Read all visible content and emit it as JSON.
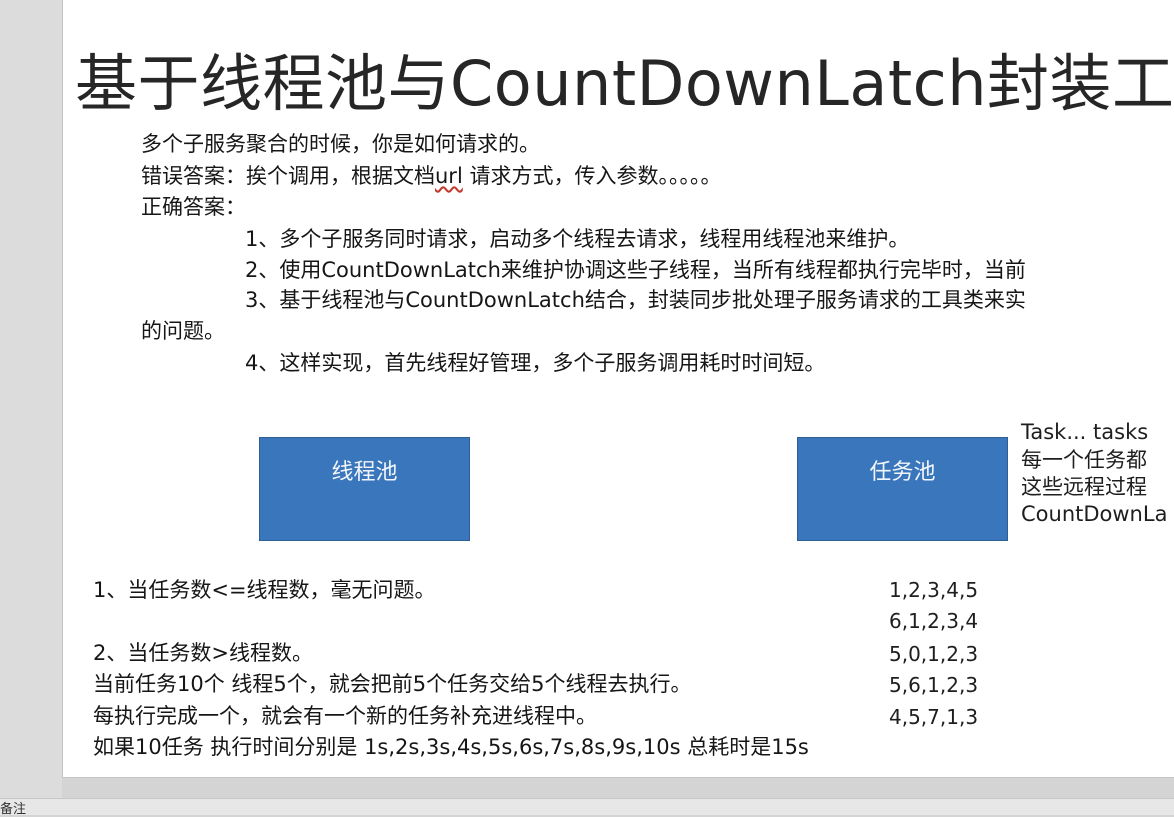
{
  "slide": {
    "title": "基于线程池与CountDownLatch封装工具类",
    "body_lines": [
      "多个子服务聚合的时候，你是如何请求的。",
      "错误答案：挨个调用，根据文档",
      "url",
      " 请求方式，传入参数。。。。。",
      "正确答案：",
      "1、多个子服务同时请求，启动多个线程去请求，线程用线程池来维护。",
      "2、使用CountDownLatch来维护协调这些子线程，当所有线程都执行完毕时，当前",
      "3、基于线程池与CountDownLatch结合，封装同步批处理子服务请求的工具类来实",
      "的问题。",
      "4、这样实现，首先线程好管理，多个子服务调用耗时时间短。"
    ],
    "boxes": {
      "thread_pool": "线程池",
      "task_pool": "任务池"
    },
    "side_notes": [
      "Task... tasks",
      "每一个任务都",
      "这些远程过程",
      "CountDownLa"
    ],
    "bottom_lines": [
      "1、当任务数<=线程数，毫无问题。",
      "2、当任务数>线程数。",
      "当前任务10个    线程5个，就会把前5个任务交给5个线程去执行。",
      "每执行完成一个，就会有一个新的任务补充进线程中。",
      "如果10任务  执行时间分别是  1s,2s,3s,4s,5s,6s,7s,8s,9s,10s   总耗时是15s"
    ],
    "number_rows": [
      "1,2,3,4,5",
      "6,1,2,3,4",
      "5,0,1,2,3",
      "5,6,1,2,3",
      "4,5,7,1,3"
    ]
  },
  "status_bar": {
    "text": "备注"
  }
}
